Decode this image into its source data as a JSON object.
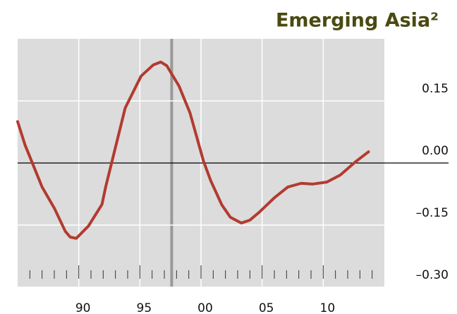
{
  "chart_data": {
    "type": "line",
    "title": "Emerging Asia²",
    "x": [
      1985.0,
      1985.6,
      1987.0,
      1988.0,
      1988.9,
      1989.3,
      1989.8,
      1990.8,
      1991.9,
      1992.2,
      1993.8,
      1995.1,
      1996.1,
      1996.7,
      1997.2,
      1998.2,
      1999.1,
      2000.2,
      2000.8,
      2001.7,
      2002.4,
      2003.3,
      2004.0,
      2004.8,
      2006.0,
      2007.1,
      2008.2,
      2009.1,
      2010.3,
      2011.4,
      2012.6,
      2013.7
    ],
    "series": [
      {
        "color": "#b23b2f",
        "values": [
          0.1,
          0.044,
          -0.058,
          -0.109,
          -0.165,
          -0.179,
          -0.182,
          -0.152,
          -0.1,
          -0.058,
          0.133,
          0.21,
          0.237,
          0.244,
          0.235,
          0.186,
          0.121,
          0.005,
          -0.043,
          -0.101,
          -0.131,
          -0.145,
          -0.138,
          -0.118,
          -0.084,
          -0.058,
          -0.049,
          -0.051,
          -0.046,
          -0.029,
          0.002,
          0.027
        ]
      }
    ],
    "xlim": [
      1985,
      2015
    ],
    "xticks": [
      {
        "value": 1990,
        "label": "90"
      },
      {
        "value": 1995,
        "label": "95"
      },
      {
        "value": 2000,
        "label": "00"
      },
      {
        "value": 2005,
        "label": "05"
      },
      {
        "value": 2010,
        "label": "10"
      }
    ],
    "xminorticks": [
      1986,
      1987,
      1988,
      1989,
      1991,
      1992,
      1993,
      1994,
      1996,
      1997,
      1998,
      1999,
      2001,
      2002,
      2003,
      2004,
      2006,
      2007,
      2008,
      2009,
      2011,
      2012,
      2013,
      2014
    ],
    "ylim": [
      -0.3,
      0.3
    ],
    "yticks": [
      {
        "value": 0.15,
        "label": "0.15"
      },
      {
        "value": 0,
        "label": "0.00"
      },
      {
        "value": -0.15,
        "label": "–0.15"
      },
      {
        "value": -0.3,
        "label": "–0.30"
      }
    ],
    "vline": 1997.6,
    "grid": true
  }
}
